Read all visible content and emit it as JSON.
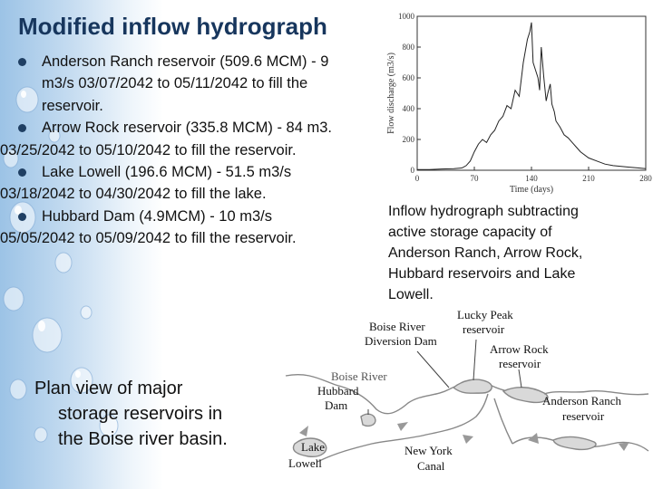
{
  "slide": {
    "title": "Modified inflow hydrograph",
    "bullets": [
      {
        "line1": "Anderson Ranch reservoir (509.6 MCM) - 9",
        "line2": "m3/s  03/07/2042 to 05/11/2042 to fill the",
        "line3": "reservoir."
      },
      {
        "line1": "Arrow Rock reservoir (335.8 MCM) - 84 m3.",
        "line2": "03/25/2042 to 05/10/2042 to fill the reservoir."
      },
      {
        "line1": "Lake Lowell (196.6 MCM) - 51.5 m3/s",
        "line2": "03/18/2042 to 04/30/2042 to fill the lake."
      },
      {
        "line1": "Hubbard Dam (4.9MCM) - 10 m3/s",
        "line2": "05/05/2042 to 05/09/2042 to fill the reservoir."
      }
    ],
    "hydrograph_caption": [
      "Inflow hydrograph subtracting",
      "active storage capacity of",
      "Anderson Ranch, Arrow Rock,",
      "Hubbard reservoirs and Lake",
      "Lowell."
    ],
    "plan_caption": [
      "Plan view of major",
      "storage reservoirs in",
      "the Boise river basin."
    ]
  },
  "chart_data": {
    "type": "line",
    "title": "",
    "xlabel": "Time (days)",
    "ylabel": "Flow discharge (m3/s)",
    "xlim": [
      0,
      280
    ],
    "ylim": [
      0,
      1000
    ],
    "xticks": [
      "0",
      "70",
      "140",
      "210",
      "280"
    ],
    "yticks": [
      "0",
      "200",
      "400",
      "600",
      "800",
      "1000"
    ],
    "grid": false,
    "series": [
      {
        "x": [
          0,
          15,
          30,
          45,
          55,
          60,
          65,
          70,
          75,
          80,
          85,
          90,
          95,
          100,
          105,
          110,
          115,
          120,
          125,
          130,
          135,
          138,
          140,
          142,
          145,
          148,
          150,
          152,
          155,
          158,
          160,
          163,
          165,
          168,
          170,
          175,
          180,
          185,
          190,
          195,
          200,
          210,
          220,
          230,
          240,
          250,
          260,
          270,
          280
        ],
        "y": [
          5,
          5,
          8,
          10,
          15,
          30,
          60,
          120,
          170,
          200,
          180,
          230,
          260,
          320,
          350,
          420,
          400,
          520,
          480,
          700,
          850,
          900,
          960,
          700,
          650,
          600,
          520,
          800,
          610,
          450,
          500,
          560,
          430,
          380,
          320,
          280,
          230,
          210,
          180,
          150,
          120,
          80,
          60,
          40,
          30,
          25,
          20,
          15,
          10
        ]
      }
    ]
  },
  "plan_map": {
    "labels": {
      "boise_river_diversion_dam": [
        "Boise River",
        "Diversion Dam"
      ],
      "lucky_peak": [
        "Lucky Peak",
        "reservoir"
      ],
      "arrow_rock": [
        "Arrow Rock",
        "reservoir"
      ],
      "anderson_ranch": [
        "Anderson Ranch",
        "reservoir"
      ],
      "boise_river": "Boise River",
      "hubbard_dam": [
        "Hubbard",
        "Dam"
      ],
      "new_york_canal": [
        "New York",
        "Canal"
      ],
      "lake_lowell": [
        "Lake",
        "Lowell"
      ]
    }
  }
}
